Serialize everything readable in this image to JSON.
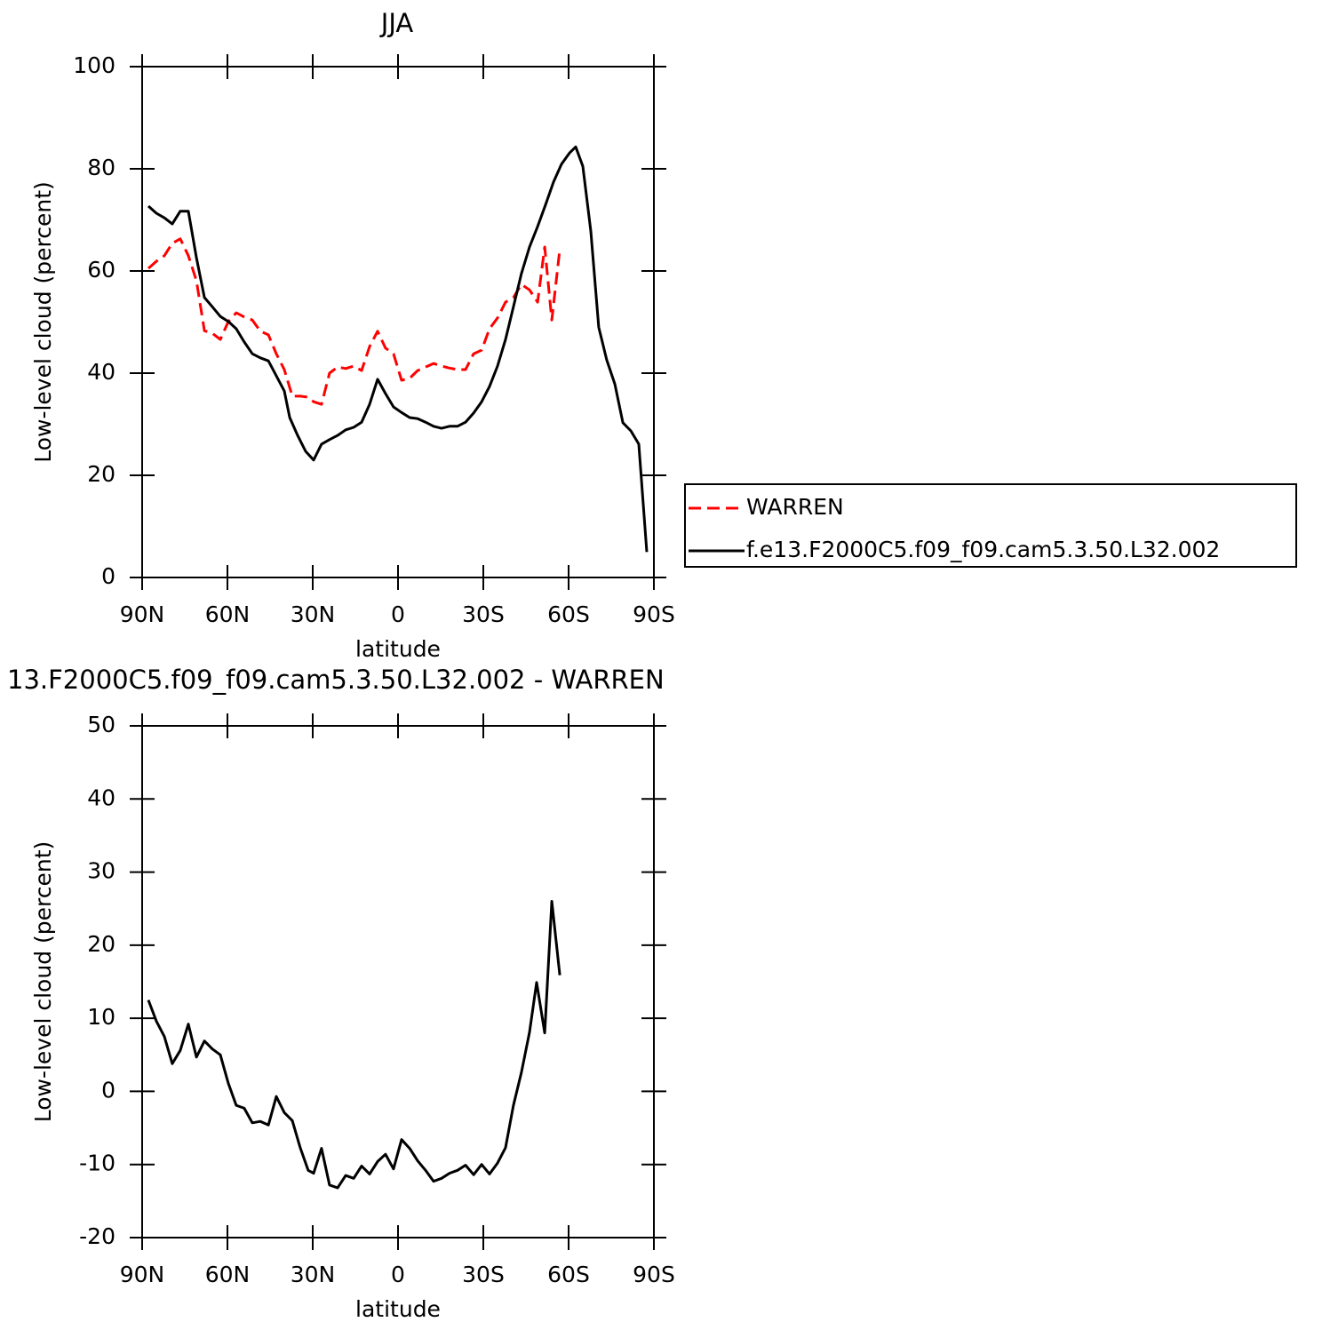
{
  "chart_data": [
    {
      "type": "line",
      "title": "JJA",
      "xlabel": "latitude",
      "ylabel": "Low-level cloud (percent)",
      "xlim": [
        90,
        -90
      ],
      "ylim": [
        0,
        100
      ],
      "xticks": [
        {
          "value": 90,
          "label": "90N"
        },
        {
          "value": 60,
          "label": "60N"
        },
        {
          "value": 30,
          "label": "30N"
        },
        0,
        {
          "value": -30,
          "label": "30S"
        },
        {
          "value": -60,
          "label": "60S"
        },
        {
          "value": -90,
          "label": "90S"
        }
      ],
      "yticks": [
        0,
        20,
        40,
        60,
        80,
        100
      ],
      "legend": "outside-right",
      "series": [
        {
          "name": "WARREN",
          "color": "#ff0000",
          "dashed": true,
          "x": [
            87.8,
            85.0,
            82.2,
            79.4,
            76.6,
            73.75,
            70.9,
            68.1,
            65.3,
            62.5,
            59.7,
            56.9,
            54.1,
            51.25,
            48.4,
            45.6,
            42.8,
            40.0,
            37.2,
            34.4,
            31.6,
            29.7,
            26.9,
            24.1,
            21.25,
            18.4,
            15.6,
            12.8,
            10.0,
            7.2,
            4.4,
            1.6,
            -1.25,
            -4.1,
            -6.9,
            -9.7,
            -12.5,
            -15.3,
            -18.1,
            -20.9,
            -23.75,
            -26.6,
            -29.4,
            -32.2,
            -35.0,
            -37.8,
            -40.6,
            -43.4,
            -46.25,
            -49.1,
            -51.6,
            -54.1,
            -56.9
          ],
          "values": [
            60.5,
            61.9,
            63.0,
            65.4,
            66.3,
            63.0,
            58.1,
            48.3,
            47.8,
            46.6,
            50.1,
            51.8,
            51.0,
            50.4,
            48.2,
            47.5,
            43.8,
            40.7,
            35.5,
            35.5,
            35.3,
            34.4,
            33.9,
            40.0,
            41.2,
            40.9,
            41.4,
            40.5,
            45.2,
            48.2,
            44.9,
            43.8,
            38.6,
            39.0,
            40.5,
            41.2,
            41.9,
            41.4,
            41.0,
            40.7,
            40.7,
            43.8,
            44.5,
            48.7,
            50.8,
            53.9,
            54.8,
            57.4,
            56.3,
            53.9,
            64.7,
            50.4,
            64.3
          ]
        },
        {
          "name": "f.e13.F2000C5.f09_f09.cam5.3.50.L32.002",
          "color": "#000000",
          "x": [
            87.8,
            85.0,
            82.2,
            79.4,
            76.6,
            73.75,
            70.9,
            68.1,
            65.3,
            62.5,
            59.7,
            56.9,
            54.1,
            51.25,
            48.4,
            45.6,
            40.0,
            38.1,
            35.3,
            32.5,
            29.7,
            26.9,
            24.1,
            21.25,
            18.4,
            15.6,
            12.8,
            10.0,
            7.2,
            4.4,
            1.6,
            -1.25,
            -4.1,
            -6.9,
            -9.7,
            -12.5,
            -15.3,
            -18.1,
            -20.9,
            -23.75,
            -26.6,
            -29.4,
            -32.2,
            -35.0,
            -37.8,
            -40.6,
            -43.4,
            -46.25,
            -49.1,
            -51.9,
            -54.7,
            -57.5,
            -60.3,
            -62.5,
            -65.0,
            -67.8,
            -70.6,
            -73.4,
            -76.25,
            -79.1,
            -81.9,
            -84.7,
            -87.5
          ],
          "values": [
            72.7,
            71.3,
            70.4,
            69.2,
            71.7,
            71.7,
            62.6,
            54.8,
            53.0,
            51.1,
            50.1,
            48.7,
            46.1,
            43.8,
            43.0,
            42.4,
            36.5,
            31.3,
            27.8,
            24.7,
            23.0,
            26.1,
            27.0,
            27.8,
            28.9,
            29.4,
            30.4,
            33.9,
            38.8,
            36.0,
            33.4,
            32.3,
            31.3,
            31.1,
            30.4,
            29.6,
            29.2,
            29.6,
            29.6,
            30.4,
            32.2,
            34.4,
            37.4,
            41.4,
            46.6,
            53.0,
            59.5,
            64.7,
            68.7,
            73.0,
            77.4,
            80.9,
            83.1,
            84.3,
            80.5,
            67.8,
            49.0,
            42.6,
            37.9,
            30.3,
            28.7,
            26.1,
            5.0
          ]
        }
      ]
    },
    {
      "type": "line",
      "title": "13.F2000C5.f09_f09.cam5.3.50.L32.002 - WARREN",
      "xlabel": "latitude",
      "ylabel": "Low-level cloud (percent)",
      "xlim": [
        90,
        -90
      ],
      "ylim": [
        -20,
        50
      ],
      "xticks": [
        {
          "value": 90,
          "label": "90N"
        },
        {
          "value": 60,
          "label": "60N"
        },
        {
          "value": 30,
          "label": "30N"
        },
        0,
        {
          "value": -30,
          "label": "30S"
        },
        {
          "value": -60,
          "label": "60S"
        },
        {
          "value": -90,
          "label": "90S"
        }
      ],
      "yticks": [
        -20,
        -10,
        0,
        10,
        20,
        30,
        40,
        50
      ],
      "color": "#000000",
      "x": [
        87.8,
        85.0,
        82.2,
        79.4,
        76.6,
        73.75,
        70.9,
        68.1,
        65.3,
        62.5,
        59.7,
        56.9,
        54.1,
        51.25,
        48.4,
        45.6,
        42.8,
        40.0,
        37.2,
        34.4,
        31.6,
        29.7,
        26.9,
        24.1,
        21.25,
        18.4,
        15.6,
        12.8,
        10.0,
        7.2,
        4.4,
        1.6,
        -1.25,
        -4.1,
        -6.9,
        -9.7,
        -12.5,
        -15.3,
        -18.1,
        -20.9,
        -23.75,
        -26.6,
        -29.4,
        -32.2,
        -35.0,
        -37.8,
        -40.6,
        -43.4,
        -46.25,
        -48.75,
        -51.6,
        -54.1,
        -56.9
      ],
      "values": [
        12.5,
        9.6,
        7.5,
        3.8,
        5.6,
        9.2,
        4.7,
        6.9,
        5.8,
        5.0,
        1.1,
        -1.9,
        -2.3,
        -4.3,
        -4.1,
        -4.6,
        -0.7,
        -2.9,
        -4.0,
        -7.7,
        -10.8,
        -11.2,
        -7.8,
        -12.8,
        -13.2,
        -11.5,
        -11.9,
        -10.2,
        -11.3,
        -9.6,
        -8.6,
        -10.6,
        -6.6,
        -7.8,
        -9.5,
        -10.8,
        -12.3,
        -11.9,
        -11.2,
        -10.8,
        -10.1,
        -11.4,
        -10.0,
        -11.3,
        -9.8,
        -7.7,
        -1.9,
        2.6,
        8.1,
        14.9,
        8.0,
        26.0,
        15.9
      ]
    }
  ]
}
